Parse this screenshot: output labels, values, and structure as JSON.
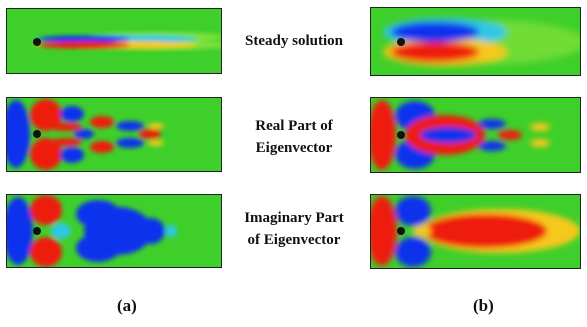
{
  "figure": {
    "row_labels": {
      "steady": "Steady solution",
      "real_line1": "Real Part of",
      "real_line2": "Eigenvector",
      "imag_line1": "Imaginary Part",
      "imag_line2": "of Eigenvector"
    },
    "column_labels": {
      "a": "(a)",
      "b": "(b)"
    },
    "colors": {
      "background_field": "#3fcf2a",
      "positive": "#ee1b0f",
      "negative": "#1030ee",
      "transition_warm": "#f5c81a",
      "transition_cool": "#2ec8e6",
      "cylinder": "#111111",
      "frame": "#222222"
    }
  }
}
